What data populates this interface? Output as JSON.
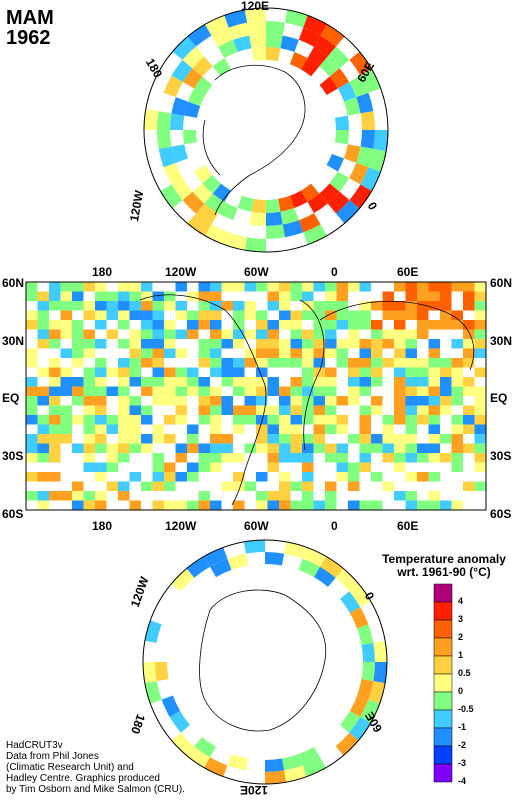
{
  "title": {
    "season": "MAM",
    "year": "1962"
  },
  "north_polar": {
    "labels": {
      "top": "120E",
      "left": "180",
      "right": "60E",
      "lowerleft": "120W",
      "lowerright": "0"
    }
  },
  "world_map": {
    "x_labels": [
      "180",
      "120W",
      "60W",
      "0",
      "60E"
    ],
    "y_labels": [
      "60N",
      "30N",
      "EQ",
      "30S",
      "60S"
    ]
  },
  "south_polar": {
    "labels": {
      "upperleft": "120W",
      "upperright": "0",
      "lowerleft": "180",
      "lowerright": "60E",
      "bottom": "120E"
    }
  },
  "legend": {
    "title_line1": "Temperature anomaly",
    "title_line2": "wrt. 1961-90  (°C)",
    "ticks": [
      "4",
      "3",
      "2",
      "1",
      "0.5",
      "0",
      "-0.5",
      "-1",
      "-2",
      "-3",
      "-4"
    ],
    "colors": [
      "#b0007a",
      "#ff2000",
      "#ff6000",
      "#ffa020",
      "#ffd040",
      "#ffff80",
      "#80ff80",
      "#40ccff",
      "#2090ff",
      "#0040ff",
      "#8000ff"
    ]
  },
  "credits": {
    "line1": "HadCRUT3v",
    "line2": "Data from Phil Jones",
    "line3": "(Climatic Research Unit) and",
    "line4": "Hadley Centre.  Graphics produced",
    "line5": "by Tim Osborn and Mike Salmon (CRU)."
  }
}
